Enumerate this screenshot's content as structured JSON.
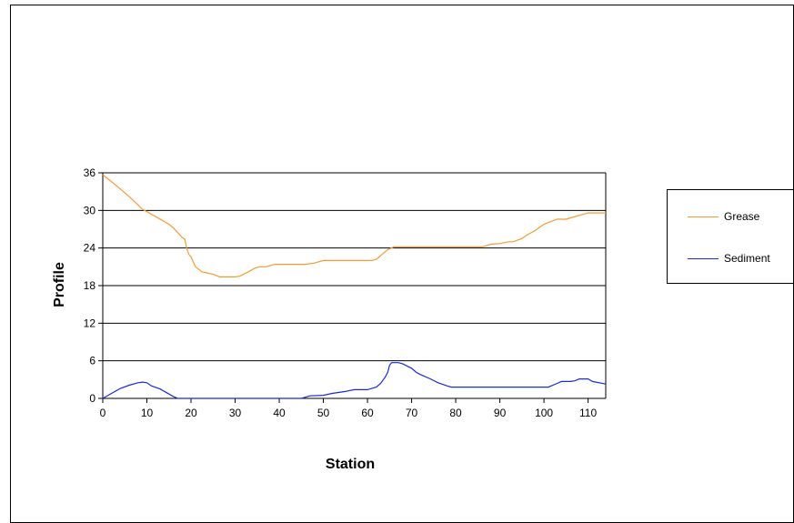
{
  "chart_data": {
    "type": "line",
    "title": "",
    "xlabel": "Station",
    "ylabel": "Profile",
    "xlim": [
      0,
      114
    ],
    "ylim": [
      0,
      36
    ],
    "x_ticks": [
      0,
      10,
      20,
      30,
      40,
      50,
      60,
      70,
      80,
      90,
      100,
      110
    ],
    "y_ticks": [
      0,
      6,
      12,
      18,
      24,
      30,
      36
    ],
    "grid": "horizontal",
    "legend_position": "right",
    "colors": {
      "grease": "#f59a33",
      "sediment": "#1a2bd8",
      "gridline": "#000000"
    },
    "series": [
      {
        "name": "Grease",
        "color": "#f59a33",
        "points": [
          [
            0,
            35.7
          ],
          [
            3,
            34
          ],
          [
            6,
            32.2
          ],
          [
            9,
            30.2
          ],
          [
            12,
            29
          ],
          [
            15,
            27.8
          ],
          [
            16,
            27.2
          ],
          [
            18,
            25.7
          ],
          [
            18.6,
            25.4
          ],
          [
            19,
            24
          ],
          [
            19.5,
            23
          ],
          [
            20,
            22.6
          ],
          [
            21,
            21
          ],
          [
            22.5,
            20.2
          ],
          [
            25,
            19.8
          ],
          [
            26.5,
            19.4
          ],
          [
            30,
            19.4
          ],
          [
            31,
            19.5
          ],
          [
            33,
            20.2
          ],
          [
            34.5,
            20.8
          ],
          [
            35.5,
            21
          ],
          [
            37,
            21
          ],
          [
            39,
            21.4
          ],
          [
            46,
            21.4
          ],
          [
            48,
            21.6
          ],
          [
            50,
            22
          ],
          [
            61,
            22
          ],
          [
            62,
            22.2
          ],
          [
            63,
            22.8
          ],
          [
            64.5,
            23.7
          ],
          [
            66,
            24.2
          ],
          [
            86,
            24.2
          ],
          [
            88,
            24.6
          ],
          [
            90,
            24.7
          ],
          [
            92,
            25
          ],
          [
            93,
            25
          ],
          [
            95,
            25.5
          ],
          [
            96,
            26
          ],
          [
            98,
            26.8
          ],
          [
            100,
            27.8
          ],
          [
            103,
            28.6
          ],
          [
            105,
            28.6
          ],
          [
            108,
            29.2
          ],
          [
            110,
            29.6
          ],
          [
            114,
            29.6
          ]
        ]
      },
      {
        "name": "Sediment",
        "color": "#1a2bd8",
        "points": [
          [
            0,
            0
          ],
          [
            2,
            0.8
          ],
          [
            4,
            1.6
          ],
          [
            6,
            2.1
          ],
          [
            8,
            2.5
          ],
          [
            9,
            2.6
          ],
          [
            10,
            2.5
          ],
          [
            11,
            2
          ],
          [
            13,
            1.5
          ],
          [
            15,
            0.7
          ],
          [
            16,
            0.3
          ],
          [
            17,
            0
          ],
          [
            45,
            0
          ],
          [
            47,
            0.4
          ],
          [
            50,
            0.5
          ],
          [
            52,
            0.8
          ],
          [
            55,
            1.1
          ],
          [
            57,
            1.4
          ],
          [
            60,
            1.4
          ],
          [
            62,
            1.8
          ],
          [
            63,
            2.4
          ],
          [
            64,
            3.4
          ],
          [
            64.6,
            4.2
          ],
          [
            65,
            5.3
          ],
          [
            65.5,
            5.7
          ],
          [
            67,
            5.7
          ],
          [
            68,
            5.5
          ],
          [
            70,
            4.8
          ],
          [
            71,
            4.2
          ],
          [
            72,
            3.8
          ],
          [
            74,
            3.2
          ],
          [
            76,
            2.5
          ],
          [
            78,
            2
          ],
          [
            79,
            1.8
          ],
          [
            100,
            1.8
          ],
          [
            101,
            1.8
          ],
          [
            103,
            2.4
          ],
          [
            104,
            2.7
          ],
          [
            106,
            2.7
          ],
          [
            107,
            2.8
          ],
          [
            108,
            3.1
          ],
          [
            110,
            3.1
          ],
          [
            111,
            2.7
          ],
          [
            114,
            2.3
          ]
        ]
      }
    ]
  }
}
